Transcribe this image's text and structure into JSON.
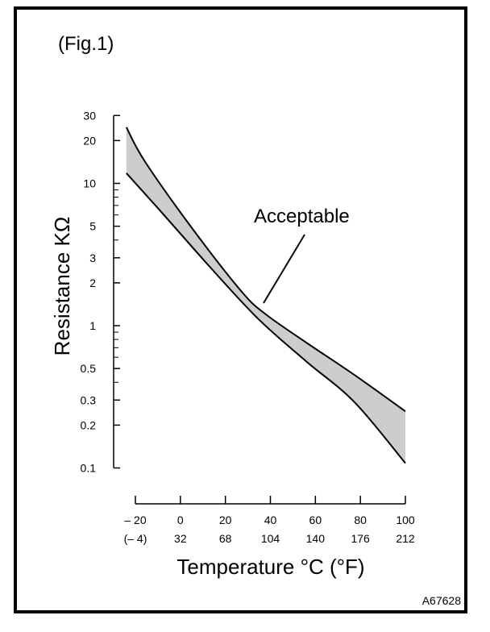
{
  "chart_data": {
    "type": "line",
    "figure_label": "(Fig.1)",
    "ylabel": "Resistance KΩ",
    "xlabel": "Temperature °C (°F)",
    "y_scale": "log",
    "ylim": [
      0.1,
      30
    ],
    "xlim": [
      -20,
      100
    ],
    "y_ticks": [
      30,
      20,
      10,
      5,
      3,
      2,
      1,
      0.5,
      0.3,
      0.2,
      0.1
    ],
    "y_tick_labels": [
      "30",
      "20",
      "10",
      "5",
      "3",
      "2",
      "1",
      "0.5",
      "0.3",
      "0.2",
      "0.1"
    ],
    "y_minor_ticks": [
      9,
      8,
      7,
      6,
      4,
      0.9,
      0.8,
      0.7,
      0.6,
      0.4
    ],
    "x_ticks": [
      -20,
      0,
      20,
      40,
      60,
      80,
      100
    ],
    "x_tick_labels_c": [
      "– 20",
      "0",
      "20",
      "40",
      "60",
      "80",
      "100"
    ],
    "x_tick_labels_f": [
      "(– 4)",
      "32",
      "68",
      "104",
      "140",
      "176",
      "212"
    ],
    "grid": false,
    "series": [
      {
        "name": "upper limit",
        "x": [
          -24,
          -15.7,
          5.8,
          27.3,
          38,
          56,
          77.4,
          100
        ],
        "y": [
          24.8,
          14.2,
          4.7,
          1.73,
          1.2,
          0.76,
          0.45,
          0.25
        ]
      },
      {
        "name": "lower limit",
        "x": [
          -24,
          -8.5,
          13,
          34.5,
          56,
          77.4,
          100
        ],
        "y": [
          11.8,
          6.3,
          2.6,
          1.12,
          0.56,
          0.29,
          0.108
        ]
      }
    ],
    "band_label": "Acceptable",
    "band_fill": "#cdcdcd",
    "code": "A67628"
  }
}
